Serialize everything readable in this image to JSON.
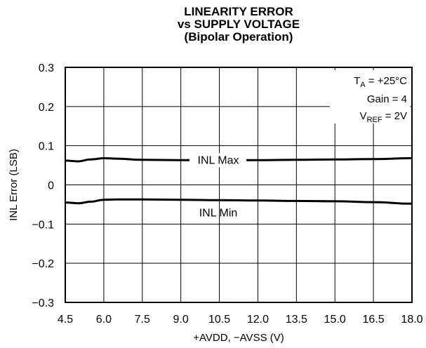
{
  "chart_data": {
    "type": "line",
    "title": [
      "LINEARITY ERROR",
      "vs SUPPLY VOLTAGE",
      "(Bipolar Operation)"
    ],
    "xlabel": "+AVDD, −AVSS (V)",
    "ylabel": "INL Error (LSB)",
    "xlim": [
      4.5,
      18.0
    ],
    "ylim": [
      -0.3,
      0.3
    ],
    "x_ticks": [
      "4.5",
      "6.0",
      "7.5",
      "9.0",
      "10.5",
      "12.0",
      "13.5",
      "15.0",
      "16.5",
      "18.0"
    ],
    "x_tick_values": [
      4.5,
      6.0,
      7.5,
      9.0,
      10.5,
      12.0,
      13.5,
      15.0,
      16.5,
      18.0
    ],
    "y_ticks": [
      "0.3",
      "0.2",
      "0.1",
      "0",
      "−0.1",
      "−0.2",
      "−0.3"
    ],
    "y_tick_values": [
      0.3,
      0.2,
      0.1,
      0,
      -0.1,
      -0.2,
      -0.3
    ],
    "grid": true,
    "series": [
      {
        "name": "INL Max",
        "x": [
          4.5,
          5.0,
          5.5,
          6.0,
          6.5,
          7.5,
          9.0,
          10.5,
          12.0,
          13.5,
          15.0,
          16.5,
          18.0
        ],
        "values": [
          0.062,
          0.06,
          0.065,
          0.068,
          0.067,
          0.064,
          0.063,
          0.063,
          0.063,
          0.064,
          0.065,
          0.066,
          0.068
        ]
      },
      {
        "name": "INL Min",
        "x": [
          4.5,
          5.0,
          5.5,
          6.0,
          6.5,
          7.5,
          9.0,
          10.5,
          12.0,
          13.5,
          15.0,
          16.5,
          18.0
        ],
        "values": [
          -0.045,
          -0.047,
          -0.043,
          -0.038,
          -0.037,
          -0.037,
          -0.038,
          -0.039,
          -0.04,
          -0.041,
          -0.042,
          -0.044,
          -0.048
        ]
      }
    ],
    "annotations": {
      "ta": "T_A = +25°C",
      "ta_main": "T",
      "ta_sub": "A",
      "ta_rest": " = +25°C",
      "gain": "Gain = 4",
      "vref_main": "V",
      "vref_sub": "REF",
      "vref_rest": " = 2V"
    }
  }
}
